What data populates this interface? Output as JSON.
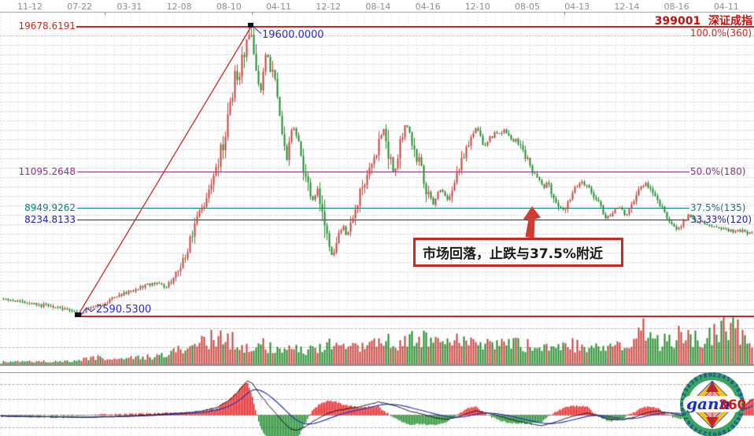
{
  "header": {
    "title_code": "399001",
    "title_name": "深证成指",
    "dates": [
      "11-12",
      "07-22",
      "03-31",
      "12-08",
      "08-10",
      "04-11",
      "12-12",
      "08-14",
      "04-16",
      "12-10",
      "08-05",
      "04-13",
      "12-14",
      "08-16",
      "04-11"
    ]
  },
  "gann_levels": [
    {
      "price": 19678.6191,
      "price_label": "19678.6191",
      "pct_label": "100.0%(360)",
      "color": "#c62a22"
    },
    {
      "price": 11095.2648,
      "price_label": "11095.2648",
      "pct_label": "50.0%(180)",
      "color": "#8b2f8b"
    },
    {
      "price": 8949.9262,
      "price_label": "8949.9262",
      "pct_label": "37.5%(135)",
      "color": "#0e7d78"
    },
    {
      "price": 8234.8133,
      "price_label": "8234.8133",
      "pct_label": "33.33%(120)",
      "color": "#2020a8"
    },
    {
      "price": 2590.53,
      "price_label": "2590.5300",
      "pct_label": "",
      "color": "#c62a22"
    }
  ],
  "trendline": {
    "from_label": "2590.5300",
    "to_label": "19600.0000",
    "from_price": 2590.53,
    "to_price": 19600.0
  },
  "annotation": {
    "text": "市场回落，止跌与37.5%附近"
  },
  "logo": {
    "text_gann": "gann",
    "text_360": "360",
    "ring_digits": "2345678901234567890123456789012345678901"
  },
  "chart_data": {
    "type": "candlestick",
    "symbol": "399001",
    "name": "深证成指",
    "x_axis_labels": [
      "11-12",
      "07-22",
      "03-31",
      "12-08",
      "08-10",
      "04-11",
      "12-12",
      "08-14",
      "04-16",
      "12-10",
      "08-05",
      "04-13",
      "12-14",
      "08-16",
      "04-11"
    ],
    "price_low": 2590.53,
    "price_high": 19600.0,
    "gann_line_prices": [
      19678.6191,
      11095.2648,
      8949.9262,
      8234.8133,
      2590.53
    ],
    "colors": {
      "up": "#c8403a",
      "down": "#1e8c28",
      "trend": "#c62a22",
      "macd_dif": "#111111",
      "macd_dea": "#2030c0"
    },
    "close_path": [
      [
        2,
        3658
      ],
      [
        25,
        3450
      ],
      [
        50,
        3240
      ],
      [
        75,
        3060
      ],
      [
        88,
        2950
      ],
      [
        98,
        2600
      ],
      [
        112,
        3010
      ],
      [
        130,
        3240
      ],
      [
        150,
        3800
      ],
      [
        170,
        4120
      ],
      [
        185,
        4400
      ],
      [
        200,
        4630
      ],
      [
        210,
        4260
      ],
      [
        222,
        4960
      ],
      [
        235,
        6260
      ],
      [
        245,
        7510
      ],
      [
        252,
        8650
      ],
      [
        258,
        9040
      ],
      [
        264,
        9900
      ],
      [
        270,
        10620
      ],
      [
        276,
        11460
      ],
      [
        282,
        12620
      ],
      [
        288,
        14250
      ],
      [
        293,
        15170
      ],
      [
        298,
        16800
      ],
      [
        303,
        16300
      ],
      [
        308,
        17960
      ],
      [
        313,
        18660
      ],
      [
        318,
        19350
      ],
      [
        323,
        17960
      ],
      [
        327,
        16800
      ],
      [
        331,
        15870
      ],
      [
        335,
        17500
      ],
      [
        339,
        18190
      ],
      [
        344,
        17030
      ],
      [
        348,
        16340
      ],
      [
        352,
        15640
      ],
      [
        356,
        14250
      ],
      [
        360,
        12620
      ],
      [
        364,
        11690
      ],
      [
        369,
        13320
      ],
      [
        374,
        13780
      ],
      [
        378,
        12620
      ],
      [
        383,
        11920
      ],
      [
        388,
        10530
      ],
      [
        393,
        9830
      ],
      [
        398,
        9370
      ],
      [
        403,
        10070
      ],
      [
        408,
        9140
      ],
      [
        413,
        7740
      ],
      [
        417,
        6820
      ],
      [
        421,
        6120
      ],
      [
        426,
        6820
      ],
      [
        430,
        7510
      ],
      [
        435,
        7980
      ],
      [
        440,
        7280
      ],
      [
        445,
        7980
      ],
      [
        450,
        8670
      ],
      [
        456,
        9600
      ],
      [
        462,
        10530
      ],
      [
        468,
        11230
      ],
      [
        474,
        11920
      ],
      [
        480,
        12620
      ],
      [
        484,
        13320
      ],
      [
        487,
        13690
      ],
      [
        491,
        12850
      ],
      [
        495,
        11920
      ],
      [
        499,
        10995
      ],
      [
        503,
        11690
      ],
      [
        507,
        12620
      ],
      [
        511,
        13320
      ],
      [
        515,
        13870
      ],
      [
        520,
        13410
      ],
      [
        525,
        12620
      ],
      [
        530,
        11920
      ],
      [
        535,
        11230
      ],
      [
        540,
        10300
      ],
      [
        545,
        9600
      ],
      [
        550,
        9230
      ],
      [
        555,
        9830
      ],
      [
        560,
        10160
      ],
      [
        565,
        9690
      ],
      [
        570,
        9370
      ],
      [
        575,
        10070
      ],
      [
        580,
        10760
      ],
      [
        585,
        11460
      ],
      [
        590,
        12160
      ],
      [
        595,
        12850
      ],
      [
        600,
        13320
      ],
      [
        605,
        13780
      ],
      [
        610,
        13090
      ],
      [
        615,
        12620
      ],
      [
        620,
        12950
      ],
      [
        625,
        13220
      ],
      [
        630,
        13550
      ],
      [
        635,
        13220
      ],
      [
        640,
        13500
      ],
      [
        645,
        13180
      ],
      [
        650,
        12850
      ],
      [
        655,
        12950
      ],
      [
        660,
        12620
      ],
      [
        665,
        12160
      ],
      [
        670,
        11690
      ],
      [
        675,
        11230
      ],
      [
        680,
        10900
      ],
      [
        685,
        10530
      ],
      [
        690,
        10160
      ],
      [
        695,
        10440
      ],
      [
        700,
        9970
      ],
      [
        705,
        9510
      ],
      [
        710,
        9040
      ],
      [
        715,
        8770
      ],
      [
        720,
        9230
      ],
      [
        725,
        9690
      ],
      [
        730,
        10070
      ],
      [
        735,
        10300
      ],
      [
        740,
        10530
      ],
      [
        745,
        10160
      ],
      [
        750,
        9830
      ],
      [
        755,
        9510
      ],
      [
        760,
        9140
      ],
      [
        765,
        8670
      ],
      [
        770,
        8300
      ],
      [
        775,
        8580
      ],
      [
        780,
        8900
      ],
      [
        785,
        9040
      ],
      [
        790,
        8770
      ],
      [
        795,
        8580
      ],
      [
        800,
        8900
      ],
      [
        805,
        9370
      ],
      [
        810,
        9830
      ],
      [
        815,
        10160
      ],
      [
        820,
        10440
      ],
      [
        825,
        10070
      ],
      [
        830,
        9690
      ],
      [
        835,
        9370
      ],
      [
        840,
        9040
      ],
      [
        845,
        8670
      ],
      [
        850,
        8300
      ],
      [
        855,
        7980
      ],
      [
        860,
        7650
      ],
      [
        865,
        7980
      ],
      [
        870,
        8300
      ],
      [
        875,
        8580
      ],
      [
        880,
        8300
      ],
      [
        885,
        8070
      ],
      [
        890,
        8210
      ],
      [
        900,
        7880
      ],
      [
        910,
        7840
      ],
      [
        920,
        7740
      ],
      [
        930,
        7650
      ],
      [
        940,
        7600
      ],
      [
        955,
        7490
      ]
    ],
    "volume_path": [
      [
        0,
        0.05
      ],
      [
        60,
        0.06
      ],
      [
        95,
        0.07
      ],
      [
        120,
        0.16
      ],
      [
        150,
        0.12
      ],
      [
        180,
        0.16
      ],
      [
        205,
        0.2
      ],
      [
        230,
        0.34
      ],
      [
        255,
        0.5
      ],
      [
        275,
        0.62
      ],
      [
        290,
        0.6
      ],
      [
        310,
        0.42
      ],
      [
        330,
        0.45
      ],
      [
        350,
        0.38
      ],
      [
        370,
        0.32
      ],
      [
        390,
        0.35
      ],
      [
        410,
        0.45
      ],
      [
        430,
        0.4
      ],
      [
        450,
        0.48
      ],
      [
        470,
        0.5
      ],
      [
        490,
        0.55
      ],
      [
        510,
        0.5
      ],
      [
        530,
        0.6
      ],
      [
        550,
        0.55
      ],
      [
        570,
        0.5
      ],
      [
        590,
        0.55
      ],
      [
        610,
        0.5
      ],
      [
        630,
        0.45
      ],
      [
        650,
        0.5
      ],
      [
        670,
        0.42
      ],
      [
        690,
        0.45
      ],
      [
        710,
        0.4
      ],
      [
        730,
        0.45
      ],
      [
        750,
        0.42
      ],
      [
        770,
        0.35
      ],
      [
        790,
        0.4
      ],
      [
        805,
        0.5
      ],
      [
        815,
        0.95
      ],
      [
        825,
        0.55
      ],
      [
        840,
        0.5
      ],
      [
        855,
        0.55
      ],
      [
        870,
        0.75
      ],
      [
        885,
        0.6
      ],
      [
        900,
        0.65
      ],
      [
        915,
        0.85
      ],
      [
        925,
        0.9
      ],
      [
        940,
        0.72
      ],
      [
        955,
        0.6
      ]
    ],
    "macd_path": [
      [
        0,
        -0.03
      ],
      [
        60,
        -0.05
      ],
      [
        100,
        -0.06
      ],
      [
        140,
        -0.04
      ],
      [
        170,
        -0.02
      ],
      [
        200,
        0.02
      ],
      [
        230,
        0.06
      ],
      [
        255,
        0.12
      ],
      [
        275,
        0.22
      ],
      [
        290,
        0.42
      ],
      [
        300,
        0.62
      ],
      [
        308,
        0.85
      ],
      [
        314,
        1.0
      ],
      [
        320,
        0.92
      ],
      [
        330,
        0.6
      ],
      [
        340,
        0.3
      ],
      [
        350,
        0.05
      ],
      [
        360,
        -0.22
      ],
      [
        368,
        -0.38
      ],
      [
        375,
        -0.44
      ],
      [
        385,
        -0.36
      ],
      [
        395,
        -0.22
      ],
      [
        405,
        -0.08
      ],
      [
        415,
        0.04
      ],
      [
        425,
        0.12
      ],
      [
        440,
        0.18
      ],
      [
        455,
        0.24
      ],
      [
        470,
        0.32
      ],
      [
        480,
        0.38
      ],
      [
        490,
        0.34
      ],
      [
        500,
        0.28
      ],
      [
        510,
        0.2
      ],
      [
        520,
        0.12
      ],
      [
        535,
        0.04
      ],
      [
        550,
        -0.06
      ],
      [
        565,
        -0.12
      ],
      [
        580,
        -0.06
      ],
      [
        595,
        0.06
      ],
      [
        605,
        0.12
      ],
      [
        615,
        0.08
      ],
      [
        630,
        0.0
      ],
      [
        645,
        -0.1
      ],
      [
        660,
        -0.18
      ],
      [
        675,
        -0.26
      ],
      [
        688,
        -0.3
      ],
      [
        700,
        -0.24
      ],
      [
        715,
        -0.12
      ],
      [
        730,
        -0.02
      ],
      [
        745,
        0.06
      ],
      [
        760,
        -0.02
      ],
      [
        775,
        -0.12
      ],
      [
        790,
        -0.14
      ],
      [
        805,
        -0.06
      ],
      [
        820,
        0.06
      ],
      [
        835,
        0.12
      ],
      [
        850,
        0.06
      ],
      [
        865,
        0.0
      ],
      [
        880,
        0.06
      ],
      [
        895,
        0.12
      ],
      [
        910,
        0.15
      ],
      [
        925,
        0.12
      ],
      [
        940,
        0.2
      ],
      [
        955,
        0.45
      ]
    ]
  }
}
